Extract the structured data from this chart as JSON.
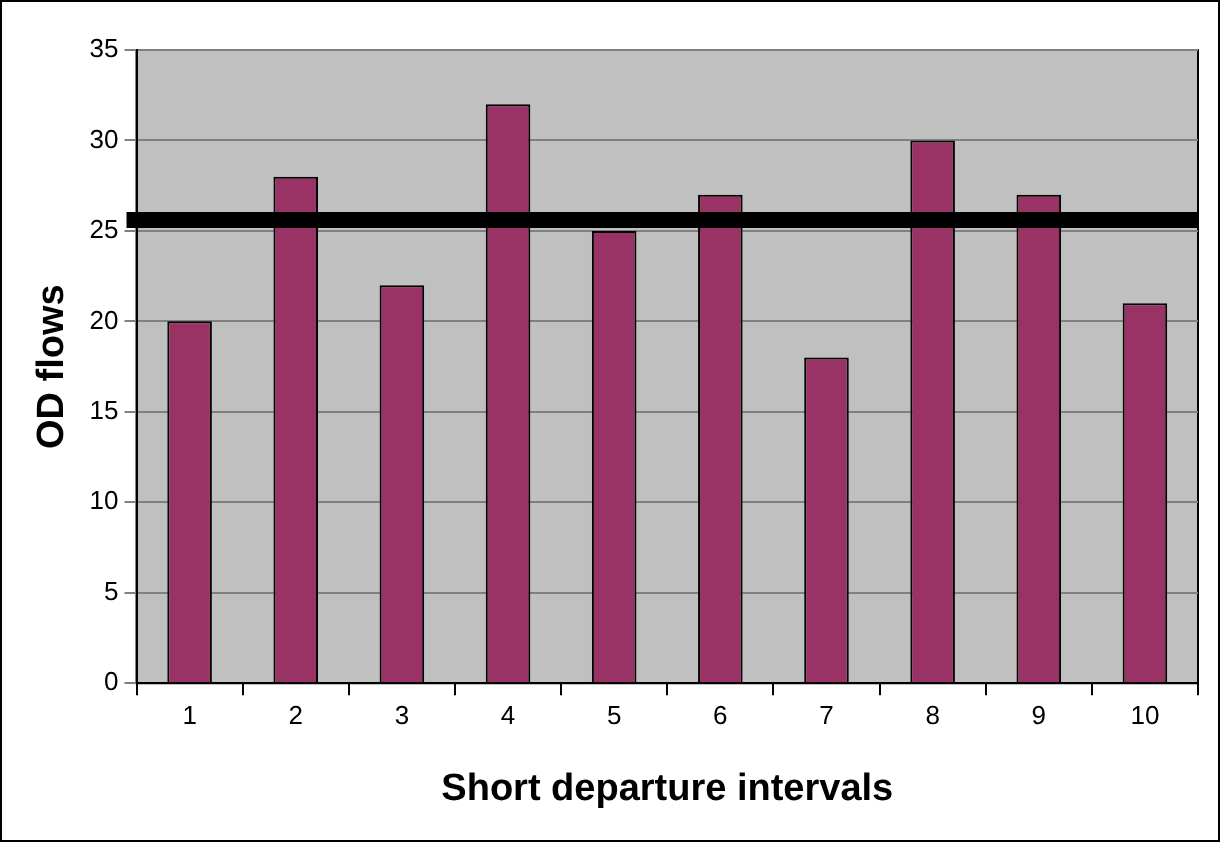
{
  "chart_data": {
    "type": "bar",
    "xlabel": "Short departure intervals",
    "ylabel": "OD flows",
    "categories": [
      "1",
      "2",
      "3",
      "4",
      "5",
      "6",
      "7",
      "8",
      "9",
      "10"
    ],
    "values": [
      20,
      28,
      22,
      32,
      25,
      27,
      18,
      30,
      27,
      21
    ],
    "color": "#993366",
    "ylim": [
      0,
      35
    ],
    "yticks": [
      0,
      5,
      10,
      15,
      20,
      25,
      30,
      35
    ],
    "grid": "y",
    "legend": false,
    "ref_lines": [
      {
        "axis": "y",
        "value": 25.6,
        "color": "#000000"
      }
    ]
  }
}
